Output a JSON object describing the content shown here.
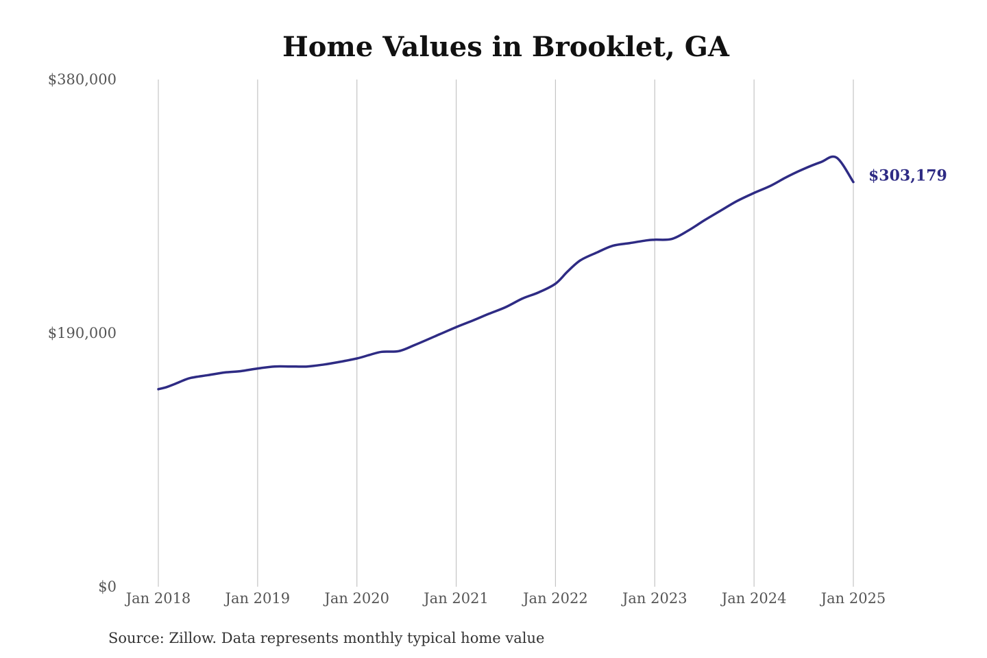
{
  "chart_data": {
    "type": "line",
    "title": "Home Values in Brooklet, GA",
    "source_note": "Source: Zillow. Data represents monthly typical home value",
    "x_tick_labels": [
      "Jan 2018",
      "Jan 2019",
      "Jan 2020",
      "Jan 2021",
      "Jan 2022",
      "Jan 2023",
      "Jan 2024",
      "Jan 2025"
    ],
    "x_tick_positions": [
      2018,
      2019,
      2020,
      2021,
      2022,
      2023,
      2024,
      2025
    ],
    "xlim": [
      2018,
      2025
    ],
    "y_tick_labels": [
      "$0",
      "$190,000",
      "$380,000"
    ],
    "y_tick_values": [
      0,
      190000,
      380000
    ],
    "ylim": [
      0,
      380000
    ],
    "grid": "vertical",
    "line_color": "#2e2b84",
    "end_label": "$303,179",
    "series": [
      {
        "x": [
          2018.0,
          2018.08,
          2018.17,
          2018.25,
          2018.33,
          2018.5,
          2018.67,
          2018.83,
          2019.0,
          2019.17,
          2019.33,
          2019.5,
          2019.67,
          2019.83,
          2020.0,
          2020.12,
          2020.25,
          2020.42,
          2020.58,
          2020.83,
          2021.0,
          2021.17,
          2021.33,
          2021.5,
          2021.67,
          2021.83,
          2022.0,
          2022.12,
          2022.25,
          2022.42,
          2022.58,
          2022.75,
          2022.92,
          2023.0,
          2023.17,
          2023.33,
          2023.5,
          2023.67,
          2023.83,
          2024.0,
          2024.17,
          2024.33,
          2024.5,
          2024.67,
          2024.83,
          2025.0
        ],
        "values": [
          148000,
          149500,
          152000,
          154500,
          156500,
          158500,
          160500,
          161500,
          163500,
          165000,
          165000,
          165000,
          166500,
          168500,
          171000,
          173500,
          176000,
          176500,
          181000,
          189000,
          194500,
          199500,
          204500,
          209500,
          216000,
          220500,
          227000,
          236000,
          244500,
          250500,
          255500,
          257500,
          259500,
          260000,
          260500,
          266500,
          274500,
          282000,
          289000,
          295000,
          300500,
          307000,
          313000,
          318000,
          321500,
          303179
        ]
      }
    ]
  }
}
